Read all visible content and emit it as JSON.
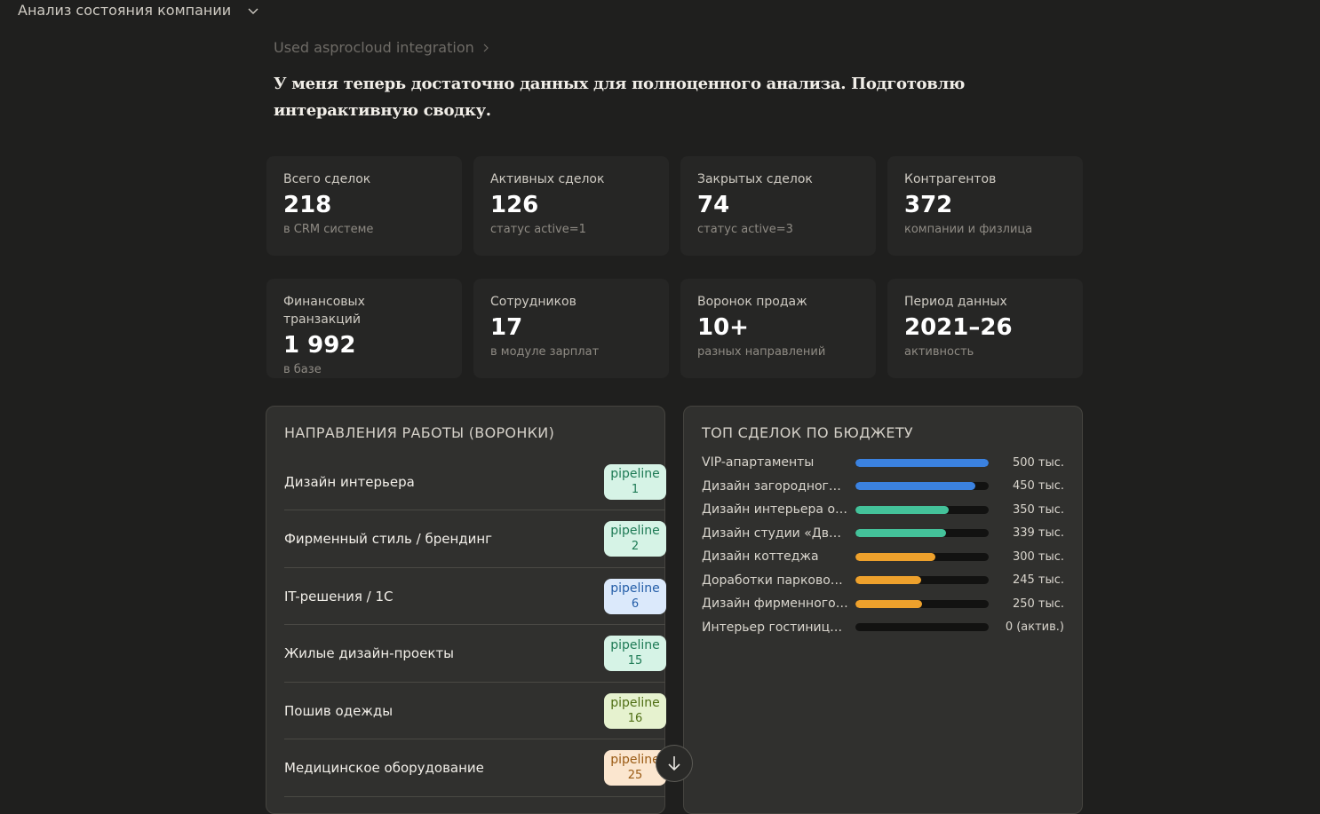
{
  "header": {
    "title": "Анализ состояния компании"
  },
  "breadcrumb": {
    "text": "Used asprocloud integration"
  },
  "lead_text": "У меня теперь достаточно данных для полноценного анализа. Подготовлю интерактивную сводку.",
  "stats": [
    {
      "label": "Всего сделок",
      "value": "218",
      "sub": "в CRM системе"
    },
    {
      "label": "Активных сделок",
      "value": "126",
      "sub": "статус active=1"
    },
    {
      "label": "Закрытых сделок",
      "value": "74",
      "sub": "статус active=3"
    },
    {
      "label": "Контрагентов",
      "value": "372",
      "sub": "компании и физлица"
    },
    {
      "label": "Финансовых транзакций",
      "value": "1 992",
      "sub": "в базе"
    },
    {
      "label": "Сотрудников",
      "value": "17",
      "sub": "в модуле зарплат"
    },
    {
      "label": "Воронок продаж",
      "value": "10+",
      "sub": "разных направлений"
    },
    {
      "label": "Период данных",
      "value": "2021–26",
      "sub": "активность"
    }
  ],
  "pipelines_panel": {
    "title": "НАПРАВЛЕНИЯ РАБОТЫ (ВОРОНКИ)",
    "items": [
      {
        "name": "Дизайн интерьера",
        "badge_label": "pipeline",
        "badge_num": "1",
        "badge_bg": "#d6f3e6",
        "badge_fg": "#1e7a55"
      },
      {
        "name": "Фирменный стиль / брендинг",
        "badge_label": "pipeline",
        "badge_num": "2",
        "badge_bg": "#d6f3e6",
        "badge_fg": "#1e7a55"
      },
      {
        "name": "IT-решения / 1С",
        "badge_label": "pipeline",
        "badge_num": "6",
        "badge_bg": "#dbe9fb",
        "badge_fg": "#245ea8"
      },
      {
        "name": "Жилые дизайн-проекты",
        "badge_label": "pipeline",
        "badge_num": "15",
        "badge_bg": "#d6f3e6",
        "badge_fg": "#1e7a55"
      },
      {
        "name": "Пошив одежды",
        "badge_label": "pipeline",
        "badge_num": "16",
        "badge_bg": "#e6f2cf",
        "badge_fg": "#4f6e14"
      },
      {
        "name": "Медицинское оборудование",
        "badge_label": "pipeline",
        "badge_num": "25",
        "badge_bg": "#fbe6cf",
        "badge_fg": "#9a5b14"
      }
    ]
  },
  "deals_panel": {
    "title": "ТОП СДЕЛОК ПО БЮДЖЕТУ",
    "items": [
      {
        "name": "VIP-апартаменты",
        "value_label": "500 тыс.",
        "fraction": 1.0,
        "color": "#3b82e0"
      },
      {
        "name": "Дизайн загородного ...",
        "value_label": "450 тыс.",
        "fraction": 0.9,
        "color": "#3b82e0"
      },
      {
        "name": "Дизайн интерьера от...",
        "value_label": "350 тыс.",
        "fraction": 0.7,
        "color": "#44c29a"
      },
      {
        "name": "Дизайн студии «Движ»",
        "value_label": "339 тыс.",
        "fraction": 0.68,
        "color": "#44c29a"
      },
      {
        "name": "Дизайн коттеджа",
        "value_label": "300 тыс.",
        "fraction": 0.6,
        "color": "#eea12c"
      },
      {
        "name": "Доработки парковой ...",
        "value_label": "245 тыс.",
        "fraction": 0.49,
        "color": "#eea12c"
      },
      {
        "name": "Дизайн фирменного ...",
        "value_label": "250 тыс.",
        "fraction": 0.5,
        "color": "#eea12c"
      },
      {
        "name": "Интерьер гостиницы ...",
        "value_label": "0 (актив.)",
        "fraction": 0.0,
        "color": "#eea12c"
      }
    ]
  }
}
